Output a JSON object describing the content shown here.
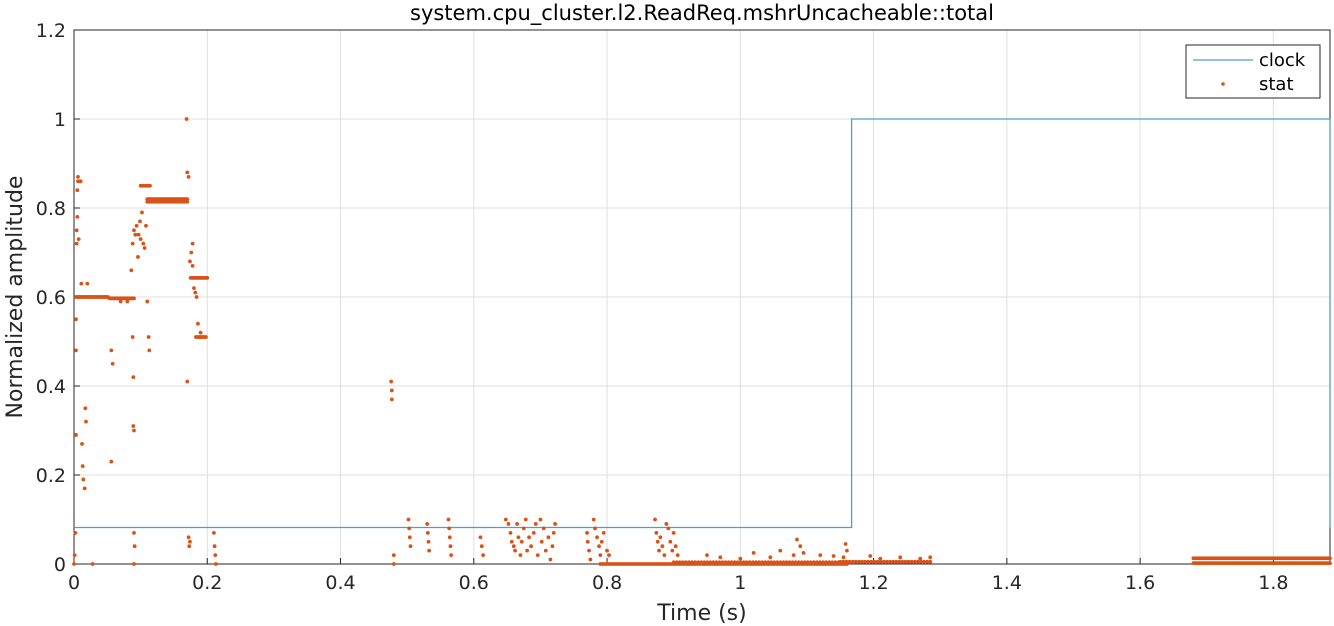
{
  "chart_data": {
    "type": "line",
    "title": "system.cpu_cluster.l2.ReadReq.mshrUncacheable::total",
    "xlabel": "Time (s)",
    "ylabel": "Normalized amplitude",
    "xlim": [
      0,
      1.885
    ],
    "ylim": [
      0,
      1.2
    ],
    "xticks": [
      0,
      0.2,
      0.4,
      0.6,
      0.8,
      1,
      1.2,
      1.4,
      1.6,
      1.8
    ],
    "xtick_labels": [
      "0",
      "0.2",
      "0.4",
      "0.6",
      "0.8",
      "1",
      "1.2",
      "1.4",
      "1.6",
      "1.8"
    ],
    "yticks": [
      0,
      0.2,
      0.4,
      0.6,
      0.8,
      1,
      1.2
    ],
    "ytick_labels": [
      "0",
      "0.2",
      "0.4",
      "0.6",
      "0.8",
      "1",
      "1.2"
    ],
    "grid": true,
    "legend_position": "top-right",
    "series": [
      {
        "name": "clock",
        "kind": "step-line",
        "color": "#4d9fc4",
        "x": [
          0,
          1.167,
          1.167,
          1.885,
          1.885
        ],
        "y": [
          0.082,
          0.082,
          1.0,
          1.0,
          0.082
        ]
      },
      {
        "name": "stat",
        "kind": "scatter",
        "color": "#d95319",
        "segments": [
          {
            "x0": 0.003,
            "x1": 0.051,
            "y": 0.6,
            "n": 30
          },
          {
            "x0": 0.053,
            "x1": 0.09,
            "y": 0.597,
            "n": 20
          },
          {
            "x0": 0.1,
            "x1": 0.114,
            "y": 0.85,
            "n": 8
          },
          {
            "x0": 0.11,
            "x1": 0.17,
            "y": 0.82,
            "n": 40
          },
          {
            "x0": 0.11,
            "x1": 0.17,
            "y": 0.814,
            "n": 30
          },
          {
            "x0": 0.175,
            "x1": 0.2,
            "y": 0.643,
            "n": 15
          },
          {
            "x0": 0.183,
            "x1": 0.198,
            "y": 0.51,
            "n": 8
          },
          {
            "x0": 0.79,
            "x1": 1.16,
            "y": 0.0,
            "n": 120
          },
          {
            "x0": 0.9,
            "x1": 1.17,
            "y": 0.004,
            "n": 60
          },
          {
            "x0": 1.15,
            "x1": 1.285,
            "y": 0.005,
            "n": 30
          },
          {
            "x0": 1.68,
            "x1": 1.885,
            "y": 0.002,
            "n": 90
          },
          {
            "x0": 1.68,
            "x1": 1.885,
            "y": 0.013,
            "n": 90
          }
        ],
        "points": [
          [
            0.0,
            0.0
          ],
          [
            0.001,
            0.02
          ],
          [
            0.002,
            0.07
          ],
          [
            0.003,
            0.29
          ],
          [
            0.003,
            0.48
          ],
          [
            0.003,
            0.55
          ],
          [
            0.004,
            0.72
          ],
          [
            0.004,
            0.75
          ],
          [
            0.005,
            0.78
          ],
          [
            0.005,
            0.84
          ],
          [
            0.006,
            0.86
          ],
          [
            0.006,
            0.87
          ],
          [
            0.007,
            0.73
          ],
          [
            0.008,
            0.6
          ],
          [
            0.009,
            0.86
          ],
          [
            0.01,
            0.86
          ],
          [
            0.011,
            0.63
          ],
          [
            0.012,
            0.27
          ],
          [
            0.013,
            0.22
          ],
          [
            0.014,
            0.19
          ],
          [
            0.016,
            0.17
          ],
          [
            0.017,
            0.35
          ],
          [
            0.018,
            0.32
          ],
          [
            0.02,
            0.63
          ],
          [
            0.024,
            0.6
          ],
          [
            0.028,
            0.0
          ],
          [
            0.056,
            0.48
          ],
          [
            0.056,
            0.23
          ],
          [
            0.058,
            0.45
          ],
          [
            0.07,
            0.59
          ],
          [
            0.08,
            0.59
          ],
          [
            0.086,
            0.66
          ],
          [
            0.088,
            0.51
          ],
          [
            0.089,
            0.42
          ],
          [
            0.089,
            0.31
          ],
          [
            0.09,
            0.3
          ],
          [
            0.09,
            0.07
          ],
          [
            0.091,
            0.04
          ],
          [
            0.09,
            0.0
          ],
          [
            0.088,
            0.72
          ],
          [
            0.09,
            0.75
          ],
          [
            0.092,
            0.74
          ],
          [
            0.094,
            0.76
          ],
          [
            0.096,
            0.69
          ],
          [
            0.097,
            0.74
          ],
          [
            0.099,
            0.77
          ],
          [
            0.1,
            0.73
          ],
          [
            0.102,
            0.79
          ],
          [
            0.104,
            0.72
          ],
          [
            0.106,
            0.71
          ],
          [
            0.108,
            0.76
          ],
          [
            0.11,
            0.59
          ],
          [
            0.112,
            0.51
          ],
          [
            0.113,
            0.48
          ],
          [
            0.169,
            1.0
          ],
          [
            0.17,
            0.88
          ],
          [
            0.17,
            0.41
          ],
          [
            0.172,
            0.87
          ],
          [
            0.172,
            0.06
          ],
          [
            0.173,
            0.04
          ],
          [
            0.174,
            0.05
          ],
          [
            0.174,
            0.68
          ],
          [
            0.176,
            0.7
          ],
          [
            0.178,
            0.72
          ],
          [
            0.178,
            0.67
          ],
          [
            0.18,
            0.62
          ],
          [
            0.182,
            0.61
          ],
          [
            0.184,
            0.6
          ],
          [
            0.186,
            0.54
          ],
          [
            0.19,
            0.52
          ],
          [
            0.21,
            0.07
          ],
          [
            0.211,
            0.04
          ],
          [
            0.212,
            0.02
          ],
          [
            0.213,
            0.0
          ],
          [
            0.476,
            0.41
          ],
          [
            0.477,
            0.39
          ],
          [
            0.477,
            0.37
          ],
          [
            0.48,
            0.02
          ],
          [
            0.48,
            0.0
          ],
          [
            0.502,
            0.1
          ],
          [
            0.503,
            0.08
          ],
          [
            0.504,
            0.06
          ],
          [
            0.505,
            0.04
          ],
          [
            0.53,
            0.09
          ],
          [
            0.531,
            0.07
          ],
          [
            0.532,
            0.05
          ],
          [
            0.533,
            0.03
          ],
          [
            0.562,
            0.1
          ],
          [
            0.563,
            0.08
          ],
          [
            0.564,
            0.06
          ],
          [
            0.565,
            0.04
          ],
          [
            0.566,
            0.02
          ],
          [
            0.61,
            0.06
          ],
          [
            0.612,
            0.04
          ],
          [
            0.614,
            0.02
          ],
          [
            0.648,
            0.1
          ],
          [
            0.652,
            0.09
          ],
          [
            0.655,
            0.07
          ],
          [
            0.657,
            0.05
          ],
          [
            0.66,
            0.04
          ],
          [
            0.662,
            0.03
          ],
          [
            0.665,
            0.09
          ],
          [
            0.667,
            0.06
          ],
          [
            0.67,
            0.02
          ],
          [
            0.672,
            0.05
          ],
          [
            0.675,
            0.08
          ],
          [
            0.678,
            0.1
          ],
          [
            0.68,
            0.03
          ],
          [
            0.683,
            0.06
          ],
          [
            0.686,
            0.04
          ],
          [
            0.69,
            0.07
          ],
          [
            0.693,
            0.09
          ],
          [
            0.696,
            0.02
          ],
          [
            0.7,
            0.1
          ],
          [
            0.702,
            0.05
          ],
          [
            0.705,
            0.08
          ],
          [
            0.708,
            0.03
          ],
          [
            0.712,
            0.06
          ],
          [
            0.715,
            0.01
          ],
          [
            0.718,
            0.04
          ],
          [
            0.72,
            0.07
          ],
          [
            0.722,
            0.09
          ],
          [
            0.77,
            0.07
          ],
          [
            0.771,
            0.05
          ],
          [
            0.773,
            0.03
          ],
          [
            0.775,
            0.01
          ],
          [
            0.78,
            0.1
          ],
          [
            0.782,
            0.08
          ],
          [
            0.785,
            0.06
          ],
          [
            0.788,
            0.04
          ],
          [
            0.79,
            0.02
          ],
          [
            0.792,
            0.05
          ],
          [
            0.795,
            0.07
          ],
          [
            0.8,
            0.03
          ],
          [
            0.803,
            0.02
          ],
          [
            0.872,
            0.1
          ],
          [
            0.874,
            0.07
          ],
          [
            0.876,
            0.05
          ],
          [
            0.878,
            0.03
          ],
          [
            0.88,
            0.06
          ],
          [
            0.883,
            0.04
          ],
          [
            0.886,
            0.02
          ],
          [
            0.889,
            0.09
          ],
          [
            0.892,
            0.08
          ],
          [
            0.895,
            0.05
          ],
          [
            0.898,
            0.03
          ],
          [
            0.9,
            0.07
          ],
          [
            0.903,
            0.04
          ],
          [
            0.906,
            0.02
          ],
          [
            0.95,
            0.02
          ],
          [
            0.97,
            0.015
          ],
          [
            1.0,
            0.012
          ],
          [
            1.02,
            0.025
          ],
          [
            1.045,
            0.015
          ],
          [
            1.06,
            0.03
          ],
          [
            1.08,
            0.02
          ],
          [
            1.085,
            0.055
          ],
          [
            1.09,
            0.04
          ],
          [
            1.095,
            0.025
          ],
          [
            1.12,
            0.02
          ],
          [
            1.14,
            0.018
          ],
          [
            1.155,
            0.015
          ],
          [
            1.158,
            0.045
          ],
          [
            1.16,
            0.03
          ],
          [
            1.195,
            0.018
          ],
          [
            1.21,
            0.012
          ],
          [
            1.24,
            0.015
          ],
          [
            1.27,
            0.012
          ],
          [
            1.285,
            0.015
          ]
        ]
      }
    ]
  }
}
